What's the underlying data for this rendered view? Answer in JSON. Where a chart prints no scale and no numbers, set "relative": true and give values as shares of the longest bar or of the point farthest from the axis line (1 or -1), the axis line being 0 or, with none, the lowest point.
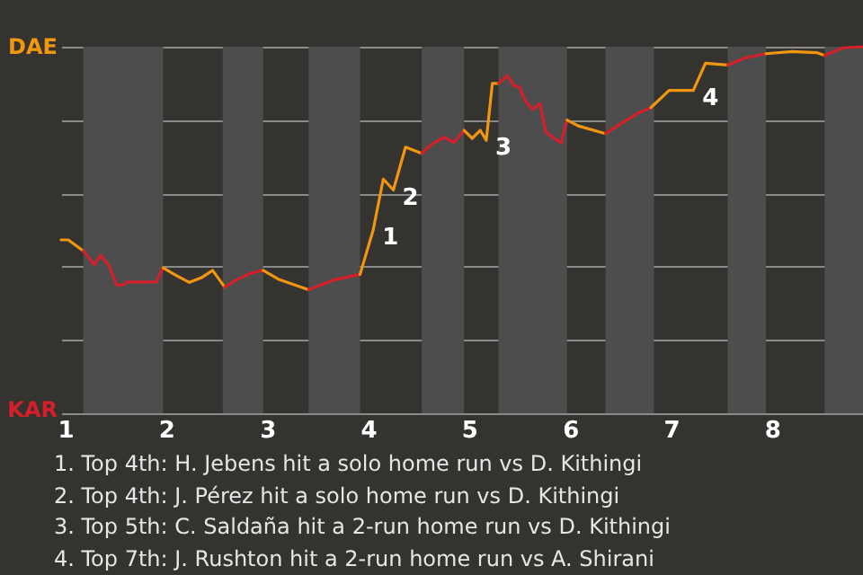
{
  "chart_data": {
    "type": "line",
    "relative": true,
    "xlim": [
      0.96,
      8.9
    ],
    "xticks": [
      1,
      2,
      3,
      4,
      5,
      6,
      7,
      8
    ],
    "grid": "y",
    "legend": "left",
    "series": [
      {
        "name": "DAE",
        "color": "#f0960f",
        "x": [
          0.96,
          1.03,
          1.18
        ],
        "values": [
          0.473,
          0.473,
          0.443
        ]
      },
      {
        "name": "KAR",
        "color": "#d4202a",
        "x": [
          1.18,
          1.29,
          1.35,
          1.43,
          1.51,
          1.57,
          1.61,
          1.9,
          1.97
        ],
        "values": [
          0.443,
          0.405,
          0.431,
          0.405,
          0.35,
          0.35,
          0.358,
          0.358,
          0.397
        ]
      },
      {
        "color": "#f0960f",
        "x": [
          1.97,
          2.1,
          2.23,
          2.35,
          2.46,
          2.58
        ],
        "values": [
          0.397,
          0.376,
          0.357,
          0.37,
          0.39,
          0.344
        ]
      },
      {
        "color": "#d4202a",
        "x": [
          2.58,
          2.69,
          2.83,
          2.96
        ],
        "values": [
          0.344,
          0.363,
          0.381,
          0.39
        ]
      },
      {
        "color": "#f0960f",
        "x": [
          2.96,
          3.11,
          3.41
        ],
        "values": [
          0.39,
          0.366,
          0.337
        ]
      },
      {
        "color": "#d4202a",
        "x": [
          3.41,
          3.65,
          3.92
        ],
        "values": [
          0.337,
          0.363,
          0.379
        ]
      },
      {
        "color": "#f0960f",
        "x": [
          3.92,
          4.05,
          4.15,
          4.25,
          4.37,
          4.53
        ],
        "values": [
          0.379,
          0.5,
          0.639,
          0.609,
          0.726,
          0.709
        ]
      },
      {
        "color": "#d4202a",
        "x": [
          4.53,
          4.63,
          4.75,
          4.85,
          4.95
        ],
        "values": [
          0.709,
          0.734,
          0.753,
          0.739,
          0.772
        ]
      },
      {
        "color": "#f0960f",
        "x": [
          4.95,
          5.03,
          5.11,
          5.17,
          5.23,
          5.29
        ],
        "values": [
          0.772,
          0.75,
          0.772,
          0.745,
          0.9,
          0.9
        ]
      },
      {
        "color": "#d4202a",
        "x": [
          5.29,
          5.38,
          5.44,
          5.5,
          5.56,
          5.63,
          5.7,
          5.76,
          5.83,
          5.91,
          5.97
        ],
        "values": [
          0.9,
          0.921,
          0.895,
          0.889,
          0.85,
          0.829,
          0.845,
          0.767,
          0.753,
          0.737,
          0.8
        ]
      },
      {
        "color": "#f0960f",
        "x": [
          5.97,
          6.08,
          6.35
        ],
        "values": [
          0.8,
          0.784,
          0.763
        ]
      },
      {
        "color": "#d4202a",
        "x": [
          6.35,
          6.55,
          6.68,
          6.8
        ],
        "values": [
          0.763,
          0.798,
          0.82,
          0.834
        ]
      },
      {
        "color": "#f0960f",
        "x": [
          6.8,
          6.98,
          7.22,
          7.34,
          7.56
        ],
        "values": [
          0.834,
          0.881,
          0.881,
          0.955,
          0.95
        ]
      },
      {
        "color": "#d4202a",
        "x": [
          7.56,
          7.74,
          7.94
        ],
        "values": [
          0.95,
          0.97,
          0.981
        ]
      },
      {
        "color": "#f0960f",
        "x": [
          7.94,
          8.2,
          8.44,
          8.52
        ],
        "values": [
          0.981,
          0.987,
          0.984,
          0.976
        ]
      },
      {
        "color": "#d4202a",
        "x": [
          8.52,
          8.7,
          8.9
        ],
        "values": [
          0.976,
          0.997,
          1
        ]
      }
    ],
    "bands": [
      {
        "axis": "x",
        "from": 1.18,
        "to": 1.97,
        "color": "#4d4d4d"
      },
      {
        "axis": "x",
        "from": 2.56,
        "to": 2.96,
        "color": "#4d4d4d"
      },
      {
        "axis": "x",
        "from": 3.41,
        "to": 3.92,
        "color": "#4d4d4d"
      },
      {
        "axis": "x",
        "from": 4.53,
        "to": 4.95,
        "color": "#4d4d4d"
      },
      {
        "axis": "x",
        "from": 5.29,
        "to": 5.97,
        "color": "#4d4d4d"
      },
      {
        "axis": "x",
        "from": 6.35,
        "to": 6.83,
        "color": "#4d4d4d"
      },
      {
        "axis": "x",
        "from": 7.56,
        "to": 7.94,
        "color": "#4d4d4d"
      },
      {
        "axis": "x",
        "from": 8.52,
        "to": 8.9,
        "color": "#4d4d4d"
      }
    ],
    "annotations": [
      {
        "text": "1",
        "x": 4.05,
        "y": 0.5
      },
      {
        "text": "2",
        "x": 4.25,
        "y": 0.609
      },
      {
        "text": "3",
        "x": 5.17,
        "y": 0.745
      },
      {
        "text": "4",
        "x": 7.22,
        "y": 0.881
      },
      "1. Top 4th: H. Jebens hit a solo home run vs D. Kithingi",
      "2. Top 4th: J. Pérez hit a solo home run vs D. Kithingi",
      "3. Top 5th: C. Saldaña hit a 2-run home run vs D. Kithingi",
      "4. Top 7th: J. Rushton hit a 2-run home run vs A. Shirani"
    ]
  }
}
